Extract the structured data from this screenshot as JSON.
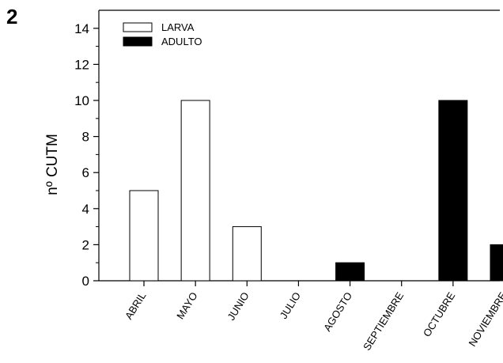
{
  "panel_label": "2",
  "chart_data": {
    "type": "bar",
    "title": "",
    "xlabel": "",
    "ylabel": "nº CUTM",
    "ylim": [
      0,
      15
    ],
    "yticks": [
      0,
      2,
      4,
      6,
      8,
      10,
      12,
      14
    ],
    "grid": false,
    "legend_position": "top-left",
    "categories": [
      "ABRIL",
      "MAYO",
      "JUNIO",
      "JULIO",
      "AGOSTO",
      "SEPTIEMBRE",
      "OCTUBRE",
      "NOVIEMBRE"
    ],
    "series": [
      {
        "name": "LARVA",
        "fill": "#ffffff",
        "values": [
          5,
          10,
          3,
          0,
          0,
          0,
          0,
          0
        ]
      },
      {
        "name": "ADULTO",
        "fill": "#000000",
        "values": [
          0,
          0,
          0,
          0,
          1,
          0,
          10,
          2
        ]
      }
    ]
  }
}
